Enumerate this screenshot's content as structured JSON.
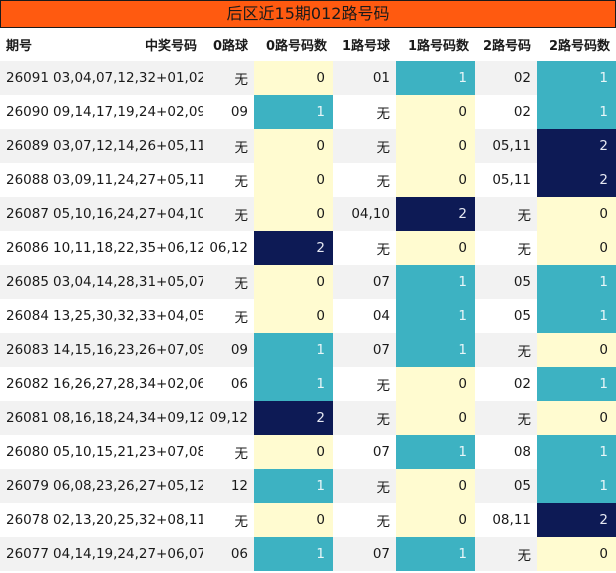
{
  "title": "后区近15期012路号码",
  "headers": [
    "期号",
    "中奖号码",
    "0路球",
    "0路号码数",
    "1路号球",
    "1路号码数",
    "2路号码",
    "2路号码数"
  ],
  "rows": [
    {
      "issue": "26091",
      "numbers": "03,04,07,12,32+01,02",
      "r0": "无",
      "r0n": 0,
      "r1": "01",
      "r1n": 1,
      "r2": "02",
      "r2n": 1
    },
    {
      "issue": "26090",
      "numbers": "09,14,17,19,24+02,09",
      "r0": "09",
      "r0n": 1,
      "r1": "无",
      "r1n": 0,
      "r2": "02",
      "r2n": 1
    },
    {
      "issue": "26089",
      "numbers": "03,07,12,14,26+05,11",
      "r0": "无",
      "r0n": 0,
      "r1": "无",
      "r1n": 0,
      "r2": "05,11",
      "r2n": 2
    },
    {
      "issue": "26088",
      "numbers": "03,09,11,24,27+05,11",
      "r0": "无",
      "r0n": 0,
      "r1": "无",
      "r1n": 0,
      "r2": "05,11",
      "r2n": 2
    },
    {
      "issue": "26087",
      "numbers": "05,10,16,24,27+04,10",
      "r0": "无",
      "r0n": 0,
      "r1": "04,10",
      "r1n": 2,
      "r2": "无",
      "r2n": 0
    },
    {
      "issue": "26086",
      "numbers": "10,11,18,22,35+06,12",
      "r0": "06,12",
      "r0n": 2,
      "r1": "无",
      "r1n": 0,
      "r2": "无",
      "r2n": 0
    },
    {
      "issue": "26085",
      "numbers": "03,04,14,28,31+05,07",
      "r0": "无",
      "r0n": 0,
      "r1": "07",
      "r1n": 1,
      "r2": "05",
      "r2n": 1
    },
    {
      "issue": "26084",
      "numbers": "13,25,30,32,33+04,05",
      "r0": "无",
      "r0n": 0,
      "r1": "04",
      "r1n": 1,
      "r2": "05",
      "r2n": 1
    },
    {
      "issue": "26083",
      "numbers": "14,15,16,23,26+07,09",
      "r0": "09",
      "r0n": 1,
      "r1": "07",
      "r1n": 1,
      "r2": "无",
      "r2n": 0
    },
    {
      "issue": "26082",
      "numbers": "16,26,27,28,34+02,06",
      "r0": "06",
      "r0n": 1,
      "r1": "无",
      "r1n": 0,
      "r2": "02",
      "r2n": 1
    },
    {
      "issue": "26081",
      "numbers": "08,16,18,24,34+09,12",
      "r0": "09,12",
      "r0n": 2,
      "r1": "无",
      "r1n": 0,
      "r2": "无",
      "r2n": 0
    },
    {
      "issue": "26080",
      "numbers": "05,10,15,21,23+07,08",
      "r0": "无",
      "r0n": 0,
      "r1": "07",
      "r1n": 1,
      "r2": "08",
      "r2n": 1
    },
    {
      "issue": "26079",
      "numbers": "06,08,23,26,27+05,12",
      "r0": "12",
      "r0n": 1,
      "r1": "无",
      "r1n": 0,
      "r2": "05",
      "r2n": 1
    },
    {
      "issue": "26078",
      "numbers": "02,13,20,25,32+08,11",
      "r0": "无",
      "r0n": 0,
      "r1": "无",
      "r1n": 0,
      "r2": "08,11",
      "r2n": 2
    },
    {
      "issue": "26077",
      "numbers": "04,14,19,24,27+06,07",
      "r0": "06",
      "r0n": 1,
      "r1": "07",
      "r1n": 1,
      "r2": "无",
      "r2n": 0
    }
  ],
  "colors": {
    "title_bg": "#ff5a10",
    "count_0_bg": "#fffbd0",
    "count_1_bg": "#3db2c2",
    "count_2_bg": "#0d1a55",
    "row_stripe": "#f2f2f2"
  }
}
